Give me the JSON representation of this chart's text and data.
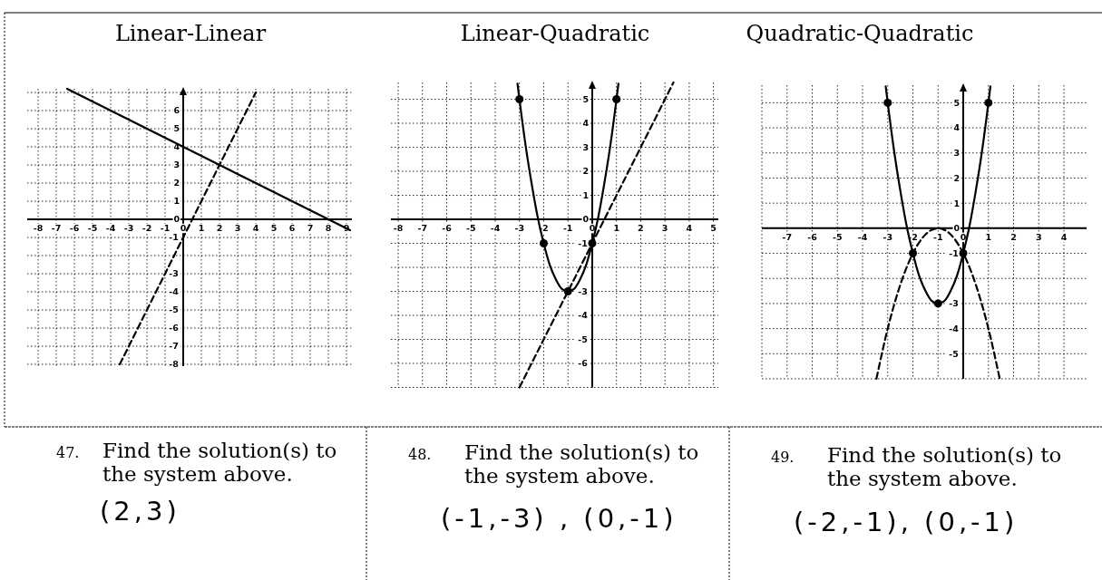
{
  "chart_data": [
    {
      "type": "line",
      "title": "Linear-Linear",
      "xlim": [
        -8.6,
        9.3
      ],
      "ylim": [
        -8.1,
        7.2
      ],
      "xticks": [
        -8,
        -7,
        -6,
        -5,
        -4,
        -3,
        -2,
        -1,
        0,
        1,
        2,
        3,
        4,
        5,
        6,
        7,
        8,
        9
      ],
      "yticks": [
        {
          "value": 7,
          "label": null
        },
        6,
        5,
        4,
        3,
        2,
        1,
        0,
        -1,
        {
          "value": -2,
          "label": null
        },
        -3,
        -4,
        -5,
        -6,
        -7,
        -8
      ],
      "grid": true,
      "series": [
        {
          "type": "line",
          "color": "#000000",
          "line_style": "solid",
          "x": [
            -6.4,
            -6,
            -4,
            -2,
            0,
            2,
            4,
            6,
            8,
            9.2
          ],
          "values": [
            7.2,
            7,
            6,
            5,
            4,
            3,
            2,
            1,
            0,
            -0.6
          ]
        },
        {
          "type": "line",
          "color": "#000000",
          "line_style": "dashed",
          "x": [
            -3.5,
            -3,
            -2,
            -1,
            0,
            1,
            2,
            3,
            4
          ],
          "values": [
            -8,
            -7,
            -5,
            -3,
            -1,
            1,
            3,
            5,
            7
          ]
        }
      ],
      "annotations": [
        "47.",
        "Find the solution(s) to\nthe system above.",
        "(2,3)"
      ]
    },
    {
      "type": "line",
      "title": "Linear-Quadratic",
      "xlim": [
        -8.3,
        5.2
      ],
      "ylim": [
        -7,
        5.7
      ],
      "xticks": [
        -8,
        -7,
        -6,
        -5,
        -4,
        -3,
        -2,
        -1,
        0,
        1,
        2,
        3,
        4,
        5
      ],
      "yticks": [
        5,
        4,
        3,
        2,
        1,
        0,
        -1,
        {
          "value": -2,
          "label": null
        },
        -3,
        -4,
        -5,
        -6,
        {
          "value": -7,
          "label": null
        }
      ],
      "grid": true,
      "series": [
        {
          "type": "line",
          "color": "#000000",
          "line_style": "solid",
          "x": [
            -3.08,
            -3,
            -2.75,
            -2.5,
            -2.25,
            -2,
            -1.75,
            -1.5,
            -1.25,
            -1,
            -0.75,
            -0.5,
            -0.25,
            0,
            0.25,
            0.5,
            0.75,
            1,
            1.08
          ],
          "values": [
            5.65,
            5,
            3.1,
            1.5,
            0.1,
            -1,
            -1.9,
            -2.5,
            -2.9,
            -3,
            -2.9,
            -2.5,
            -1.9,
            -1,
            0.1,
            1.5,
            3.1,
            5,
            5.65
          ]
        },
        {
          "type": "line",
          "color": "#000000",
          "line_style": "dashed",
          "x": [
            -3,
            -2,
            -1,
            0,
            1,
            2,
            3,
            3.35
          ],
          "values": [
            -7,
            -5,
            -3,
            -1,
            1,
            3,
            5,
            5.7
          ]
        },
        {
          "type": "scatter",
          "color": "#000000",
          "marker": "circle",
          "x": [
            -3,
            -2,
            -1,
            0,
            1
          ],
          "values": [
            5,
            -1,
            -3,
            -1,
            5
          ]
        }
      ],
      "annotations": [
        "48.",
        "Find the solution(s) to\nthe system above.",
        "(-1,-3) , (0,-1)"
      ]
    },
    {
      "type": "line",
      "title": "Quadratic-Quadratic",
      "xlim": [
        -8,
        4.9
      ],
      "ylim": [
        -6,
        5.7
      ],
      "xticks": [
        {
          "value": -8,
          "label": null
        },
        -7,
        -6,
        -5,
        -4,
        -3,
        -2,
        -1,
        0,
        1,
        2,
        3,
        4
      ],
      "yticks": [
        5,
        4,
        3,
        2,
        1,
        0,
        -1,
        {
          "value": -2,
          "label": null
        },
        -3,
        -4,
        -5,
        {
          "value": -6,
          "label": null
        }
      ],
      "grid": true,
      "series": [
        {
          "type": "line",
          "color": "#000000",
          "line_style": "solid",
          "x": [
            -3.08,
            -3,
            -2.75,
            -2.5,
            -2.25,
            -2,
            -1.75,
            -1.5,
            -1.25,
            -1,
            -0.75,
            -0.5,
            -0.25,
            0,
            0.25,
            0.5,
            0.75,
            1,
            1.08
          ],
          "values": [
            5.65,
            5,
            3.1,
            1.5,
            0.1,
            -1,
            -1.9,
            -2.5,
            -2.9,
            -3,
            -2.9,
            -2.5,
            -1.9,
            -1,
            0.1,
            1.5,
            3.1,
            5,
            5.65
          ]
        },
        {
          "type": "line",
          "color": "#000000",
          "line_style": "dashed",
          "x": [
            -3.45,
            -3,
            -2.5,
            -2,
            -1.5,
            -1,
            -0.5,
            0,
            0.5,
            1,
            1.45
          ],
          "values": [
            -6,
            -4,
            -2.25,
            -1,
            -0.25,
            0,
            -0.25,
            -1,
            -2.25,
            -4,
            -6
          ]
        },
        {
          "type": "scatter",
          "color": "#000000",
          "marker": "circle",
          "x": [
            -3,
            -2,
            -1,
            0,
            1
          ],
          "values": [
            5,
            -1,
            -3,
            -1,
            5
          ]
        }
      ],
      "annotations": [
        "49.",
        "Find the solution(s) to\nthe system above.",
        "(-2,-1), (0,-1)"
      ]
    }
  ]
}
